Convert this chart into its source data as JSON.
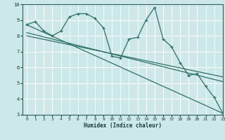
{
  "xlabel": "Humidex (Indice chaleur)",
  "bg_color": "#cce8e8",
  "grid_color": "#ffffff",
  "line_color": "#2d7068",
  "xlim": [
    -0.5,
    23
  ],
  "ylim": [
    3,
    10
  ],
  "xticks": [
    0,
    1,
    2,
    3,
    4,
    5,
    6,
    7,
    8,
    9,
    10,
    11,
    12,
    13,
    14,
    15,
    16,
    17,
    18,
    19,
    20,
    21,
    22,
    23
  ],
  "yticks": [
    3,
    4,
    5,
    6,
    7,
    8,
    9,
    10
  ],
  "line1_x": [
    0,
    1,
    2,
    3,
    4,
    5,
    6,
    7,
    8,
    9,
    10,
    11,
    12,
    13,
    14,
    15,
    16,
    17,
    18,
    19,
    20,
    21,
    22,
    23
  ],
  "line1_y": [
    8.7,
    8.9,
    8.3,
    8.0,
    8.3,
    9.2,
    9.4,
    9.4,
    9.1,
    8.5,
    6.7,
    6.6,
    7.8,
    7.9,
    9.0,
    9.8,
    7.8,
    7.3,
    6.3,
    5.5,
    5.6,
    4.8,
    4.1,
    3.1
  ],
  "line2_x": [
    0,
    23
  ],
  "line2_y": [
    8.7,
    3.1
  ],
  "line3_x": [
    0,
    23
  ],
  "line3_y": [
    8.2,
    5.1
  ],
  "line4_x": [
    0,
    23
  ],
  "line4_y": [
    8.0,
    5.4
  ]
}
